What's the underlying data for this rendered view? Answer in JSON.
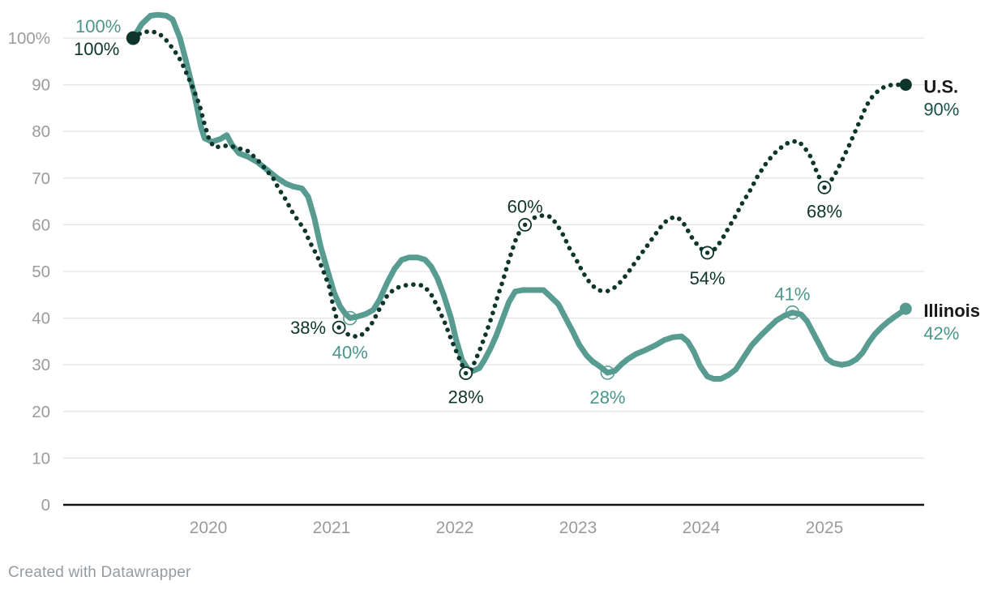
{
  "footer": {
    "credit": "Created with Datawrapper"
  },
  "chart_data": {
    "type": "line",
    "title": "",
    "x_axis": {
      "ticks": [
        2020,
        2021,
        2022,
        2023,
        2024,
        2025
      ],
      "tick_labels": [
        "2020",
        "2021",
        "2022",
        "2023",
        "2024",
        "2025"
      ],
      "range": [
        2019.39,
        2025.66
      ],
      "grid": false
    },
    "y_axis": {
      "ticks": [
        0,
        10,
        20,
        30,
        40,
        50,
        60,
        70,
        80,
        90,
        100
      ],
      "tick_labels": [
        "0",
        "10",
        "20",
        "30",
        "40",
        "50",
        "60",
        "70",
        "80",
        "90",
        "100%"
      ],
      "range": [
        0,
        105
      ],
      "grid": true
    },
    "legend_position": "line-end-labels",
    "colors": {
      "axis_text": "#9b9b9b",
      "gridline": "#e4e4e4",
      "baseline": "#131313"
    },
    "series": [
      {
        "name": "Illinois",
        "color": "#579b91",
        "line_style": "solid",
        "marker_style": "ring",
        "start_dot": false,
        "end_dot": true,
        "annotation_color": "#4b968b",
        "end_label": {
          "title": "Illinois",
          "value": "42%",
          "title_color": "#191919",
          "value_color": "#4b968b"
        },
        "annotations": [
          {
            "x": 2019.39,
            "y": 100,
            "label": "100%",
            "circle": false,
            "anchor": "end",
            "dx": -15,
            "dy": -7
          },
          {
            "x": 2021.15,
            "y": 40,
            "label": "40%",
            "circle": true,
            "anchor": "middle",
            "dx": 0,
            "dy": 50
          },
          {
            "x": 2023.24,
            "y": 28.3,
            "label": "28%",
            "circle": true,
            "anchor": "middle",
            "dx": 0,
            "dy": 38
          },
          {
            "x": 2024.74,
            "y": 41.2,
            "label": "41%",
            "circle": true,
            "anchor": "middle",
            "dx": 0,
            "dy": -15
          }
        ],
        "points": [
          [
            2019.39,
            100
          ],
          [
            2019.46,
            103
          ],
          [
            2019.53,
            104.8
          ],
          [
            2019.59,
            105
          ],
          [
            2019.66,
            104.8
          ],
          [
            2019.71,
            104
          ],
          [
            2019.77,
            100
          ],
          [
            2019.82,
            95
          ],
          [
            2019.89,
            87.5
          ],
          [
            2019.94,
            81
          ],
          [
            2019.97,
            78.5
          ],
          [
            2020.03,
            77.8
          ],
          [
            2020.1,
            78.4
          ],
          [
            2020.15,
            79.2
          ],
          [
            2020.19,
            77.2
          ],
          [
            2020.25,
            75.3
          ],
          [
            2020.32,
            74.6
          ],
          [
            2020.4,
            73.4
          ],
          [
            2020.48,
            71.7
          ],
          [
            2020.56,
            70
          ],
          [
            2020.63,
            68.8
          ],
          [
            2020.69,
            68.2
          ],
          [
            2020.76,
            67.8
          ],
          [
            2020.81,
            66
          ],
          [
            2020.86,
            61.5
          ],
          [
            2020.91,
            55.5
          ],
          [
            2020.97,
            50
          ],
          [
            2021.02,
            45.5
          ],
          [
            2021.07,
            42.5
          ],
          [
            2021.11,
            41
          ],
          [
            2021.15,
            40
          ],
          [
            2021.22,
            40.4
          ],
          [
            2021.28,
            40.9
          ],
          [
            2021.34,
            41.8
          ],
          [
            2021.39,
            44
          ],
          [
            2021.45,
            47.5
          ],
          [
            2021.51,
            50.5
          ],
          [
            2021.57,
            52.5
          ],
          [
            2021.63,
            53
          ],
          [
            2021.7,
            53
          ],
          [
            2021.76,
            52.5
          ],
          [
            2021.81,
            51
          ],
          [
            2021.86,
            48.5
          ],
          [
            2021.91,
            45
          ],
          [
            2021.97,
            40
          ],
          [
            2022.01,
            35.5
          ],
          [
            2022.06,
            31
          ],
          [
            2022.11,
            29
          ],
          [
            2022.15,
            28.7
          ],
          [
            2022.2,
            29.3
          ],
          [
            2022.24,
            31
          ],
          [
            2022.29,
            33.5
          ],
          [
            2022.34,
            36.5
          ],
          [
            2022.39,
            40
          ],
          [
            2022.44,
            43.5
          ],
          [
            2022.49,
            45.7
          ],
          [
            2022.55,
            46
          ],
          [
            2022.64,
            46
          ],
          [
            2022.72,
            46
          ],
          [
            2022.77,
            44.8
          ],
          [
            2022.84,
            43
          ],
          [
            2022.9,
            40
          ],
          [
            2022.96,
            37
          ],
          [
            2023.01,
            34.3
          ],
          [
            2023.07,
            32
          ],
          [
            2023.12,
            30.7
          ],
          [
            2023.17,
            29.8
          ],
          [
            2023.24,
            28.3
          ],
          [
            2023.3,
            28.7
          ],
          [
            2023.36,
            30.3
          ],
          [
            2023.41,
            31.3
          ],
          [
            2023.47,
            32.3
          ],
          [
            2023.55,
            33.2
          ],
          [
            2023.63,
            34.2
          ],
          [
            2023.7,
            35.3
          ],
          [
            2023.77,
            35.9
          ],
          [
            2023.84,
            36.1
          ],
          [
            2023.89,
            35
          ],
          [
            2023.94,
            32.8
          ],
          [
            2023.99,
            29.8
          ],
          [
            2024.05,
            27.5
          ],
          [
            2024.1,
            27
          ],
          [
            2024.16,
            27
          ],
          [
            2024.22,
            27.8
          ],
          [
            2024.28,
            29
          ],
          [
            2024.35,
            31.8
          ],
          [
            2024.41,
            34.2
          ],
          [
            2024.48,
            36.2
          ],
          [
            2024.55,
            38
          ],
          [
            2024.61,
            39.5
          ],
          [
            2024.68,
            40.6
          ],
          [
            2024.74,
            41.2
          ],
          [
            2024.81,
            40.8
          ],
          [
            2024.86,
            39.3
          ],
          [
            2024.91,
            36.8
          ],
          [
            2024.97,
            33.8
          ],
          [
            2025.02,
            31.3
          ],
          [
            2025.07,
            30.4
          ],
          [
            2025.14,
            30
          ],
          [
            2025.2,
            30.3
          ],
          [
            2025.26,
            31.2
          ],
          [
            2025.31,
            32.6
          ],
          [
            2025.36,
            34.8
          ],
          [
            2025.41,
            36.6
          ],
          [
            2025.47,
            38.2
          ],
          [
            2025.52,
            39.3
          ],
          [
            2025.57,
            40.3
          ],
          [
            2025.62,
            41.2
          ],
          [
            2025.66,
            42
          ]
        ]
      },
      {
        "name": "U.S.",
        "color": "#0e352c",
        "line_style": "dotted",
        "marker_style": "ring-dot",
        "start_dot": true,
        "end_dot": true,
        "annotation_color": "#0e352c",
        "end_label": {
          "title": "U.S.",
          "value": "90%",
          "title_color": "#191919",
          "value_color": "#1b5045"
        },
        "annotations": [
          {
            "x": 2019.39,
            "y": 100,
            "label": "100%",
            "circle": false,
            "anchor": "end",
            "dx": -17,
            "dy": 21
          },
          {
            "x": 2021.06,
            "y": 38,
            "label": "38%",
            "circle": true,
            "anchor": "end",
            "dx": -16,
            "dy": 8
          },
          {
            "x": 2022.09,
            "y": 28.2,
            "label": "28%",
            "circle": true,
            "anchor": "middle",
            "dx": 0,
            "dy": 37
          },
          {
            "x": 2022.57,
            "y": 60,
            "label": "60%",
            "circle": true,
            "anchor": "middle",
            "dx": 0,
            "dy": -15
          },
          {
            "x": 2024.05,
            "y": 54,
            "label": "54%",
            "circle": true,
            "anchor": "middle",
            "dx": 0,
            "dy": 39
          },
          {
            "x": 2025.0,
            "y": 68,
            "label": "68%",
            "circle": true,
            "anchor": "middle",
            "dx": 0,
            "dy": 37
          }
        ],
        "points": [
          [
            2019.39,
            100
          ],
          [
            2019.46,
            101.2
          ],
          [
            2019.53,
            101.5
          ],
          [
            2019.6,
            101
          ],
          [
            2019.66,
            99.5
          ],
          [
            2019.72,
            97.5
          ],
          [
            2019.78,
            95
          ],
          [
            2019.83,
            92
          ],
          [
            2019.88,
            89
          ],
          [
            2019.93,
            85.5
          ],
          [
            2019.97,
            81.5
          ],
          [
            2020.01,
            78
          ],
          [
            2020.05,
            76.6
          ],
          [
            2020.11,
            76.8
          ],
          [
            2020.16,
            77
          ],
          [
            2020.22,
            76.6
          ],
          [
            2020.27,
            76.2
          ],
          [
            2020.32,
            75.8
          ],
          [
            2020.38,
            74.4
          ],
          [
            2020.43,
            73
          ],
          [
            2020.48,
            71.4
          ],
          [
            2020.53,
            69.8
          ],
          [
            2020.57,
            67.8
          ],
          [
            2020.63,
            65.3
          ],
          [
            2020.68,
            62.8
          ],
          [
            2020.73,
            60.8
          ],
          [
            2020.78,
            59
          ],
          [
            2020.82,
            56.5
          ],
          [
            2020.88,
            53.5
          ],
          [
            2020.93,
            50.3
          ],
          [
            2020.98,
            46.8
          ],
          [
            2021.01,
            43
          ],
          [
            2021.06,
            38
          ],
          [
            2021.11,
            36.8
          ],
          [
            2021.16,
            36.2
          ],
          [
            2021.22,
            36
          ],
          [
            2021.27,
            36.9
          ],
          [
            2021.33,
            39
          ],
          [
            2021.39,
            42
          ],
          [
            2021.46,
            45.2
          ],
          [
            2021.53,
            46.5
          ],
          [
            2021.59,
            47
          ],
          [
            2021.66,
            47.2
          ],
          [
            2021.74,
            47
          ],
          [
            2021.8,
            45.5
          ],
          [
            2021.86,
            42.5
          ],
          [
            2021.92,
            39
          ],
          [
            2021.97,
            35.5
          ],
          [
            2022.01,
            33
          ],
          [
            2022.05,
            30.5
          ],
          [
            2022.09,
            28.2
          ],
          [
            2022.13,
            28.8
          ],
          [
            2022.16,
            30.5
          ],
          [
            2022.2,
            33
          ],
          [
            2022.25,
            36.5
          ],
          [
            2022.3,
            40.3
          ],
          [
            2022.34,
            44
          ],
          [
            2022.39,
            48
          ],
          [
            2022.44,
            52.5
          ],
          [
            2022.49,
            56.5
          ],
          [
            2022.53,
            58.8
          ],
          [
            2022.57,
            60
          ],
          [
            2022.62,
            61.2
          ],
          [
            2022.67,
            61.8
          ],
          [
            2022.72,
            62
          ],
          [
            2022.78,
            61.7
          ],
          [
            2022.83,
            60
          ],
          [
            2022.88,
            57.8
          ],
          [
            2022.93,
            55
          ],
          [
            2022.99,
            52.3
          ],
          [
            2023.04,
            49.8
          ],
          [
            2023.09,
            47.8
          ],
          [
            2023.14,
            46.4
          ],
          [
            2023.18,
            45.9
          ],
          [
            2023.24,
            45.8
          ],
          [
            2023.29,
            46.4
          ],
          [
            2023.34,
            47.6
          ],
          [
            2023.4,
            49.5
          ],
          [
            2023.46,
            51.8
          ],
          [
            2023.52,
            54
          ],
          [
            2023.58,
            56.2
          ],
          [
            2023.64,
            58.4
          ],
          [
            2023.69,
            60.2
          ],
          [
            2023.74,
            61.3
          ],
          [
            2023.79,
            61.7
          ],
          [
            2023.84,
            61
          ],
          [
            2023.88,
            59.3
          ],
          [
            2023.93,
            57
          ],
          [
            2023.99,
            55
          ],
          [
            2024.05,
            54
          ],
          [
            2024.11,
            54.8
          ],
          [
            2024.16,
            56.5
          ],
          [
            2024.21,
            58.8
          ],
          [
            2024.27,
            61.5
          ],
          [
            2024.33,
            64.5
          ],
          [
            2024.4,
            67.5
          ],
          [
            2024.46,
            70.5
          ],
          [
            2024.53,
            73.3
          ],
          [
            2024.59,
            75.2
          ],
          [
            2024.66,
            76.8
          ],
          [
            2024.72,
            77.8
          ],
          [
            2024.79,
            77.9
          ],
          [
            2024.84,
            76.5
          ],
          [
            2024.89,
            74.5
          ],
          [
            2024.93,
            71.8
          ],
          [
            2024.97,
            69.5
          ],
          [
            2025.0,
            68
          ],
          [
            2025.05,
            69.3
          ],
          [
            2025.1,
            71.5
          ],
          [
            2025.15,
            74.2
          ],
          [
            2025.2,
            77
          ],
          [
            2025.25,
            80
          ],
          [
            2025.3,
            83
          ],
          [
            2025.34,
            85.5
          ],
          [
            2025.39,
            87.5
          ],
          [
            2025.44,
            88.8
          ],
          [
            2025.49,
            89.6
          ],
          [
            2025.55,
            90
          ],
          [
            2025.61,
            90
          ],
          [
            2025.66,
            90
          ]
        ]
      }
    ]
  }
}
